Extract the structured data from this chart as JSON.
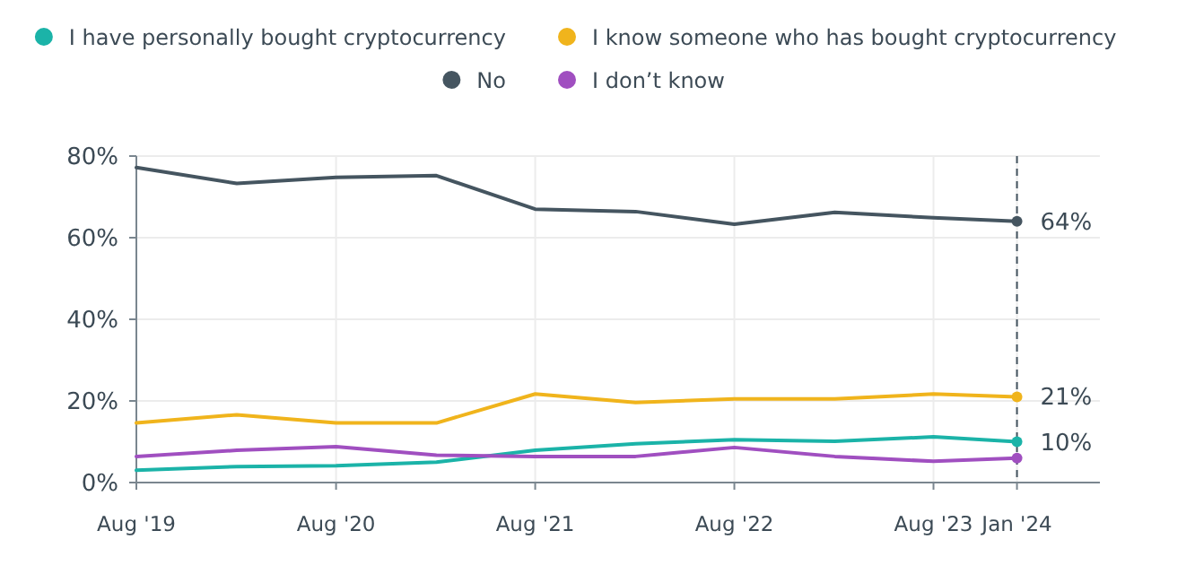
{
  "chart_data": {
    "type": "line",
    "x": [
      "2019-08",
      "2020-02",
      "2020-08",
      "2021-02",
      "2021-08",
      "2022-02",
      "2022-08",
      "2023-02",
      "2023-08",
      "2024-01"
    ],
    "series": [
      {
        "name": "I have personally bought cryptocurrency",
        "color": "#1bb3a8",
        "values": [
          3.0,
          3.9,
          4.1,
          5.0,
          7.9,
          9.5,
          10.5,
          10.1,
          11.2,
          10
        ],
        "value_labels": [
          null,
          null,
          null,
          null,
          null,
          null,
          null,
          null,
          null,
          "10%"
        ]
      },
      {
        "name": "I know someone who has bought cryptocurrency",
        "color": "#f0b41c",
        "values": [
          14.6,
          16.6,
          14.6,
          14.6,
          21.7,
          19.6,
          20.5,
          20.5,
          21.7,
          21
        ],
        "value_labels": [
          null,
          null,
          null,
          null,
          null,
          null,
          null,
          null,
          null,
          "21%"
        ]
      },
      {
        "name": "No",
        "color": "#455560",
        "values": [
          77.2,
          73.3,
          74.8,
          75.2,
          67,
          66.4,
          63.3,
          66.2,
          64.9,
          64
        ],
        "value_labels": [
          null,
          null,
          null,
          null,
          null,
          null,
          null,
          null,
          null,
          "64%"
        ]
      },
      {
        "name": "I don’t know",
        "color": "#a04fc0",
        "values": [
          6.4,
          7.9,
          8.8,
          6.7,
          6.4,
          6.4,
          8.6,
          6.4,
          5.2,
          6
        ]
      }
    ],
    "xlim": [
      "2019-08",
      "2024-06"
    ],
    "xticks": [
      {
        "value": "2019-08",
        "label": "Aug '19"
      },
      {
        "value": "2020-08",
        "label": "Aug '20"
      },
      {
        "value": "2021-08",
        "label": "Aug '21"
      },
      {
        "value": "2022-08",
        "label": "Aug '22"
      },
      {
        "value": "2023-08",
        "label": "Aug '23"
      },
      {
        "value": "2024-01",
        "label": "Jan '24"
      }
    ],
    "ylim": [
      0,
      80
    ],
    "yticks": [
      {
        "value": 0,
        "label": "0%"
      },
      {
        "value": 20,
        "label": "20%"
      },
      {
        "value": 40,
        "label": "40%"
      },
      {
        "value": 60,
        "label": "60%"
      },
      {
        "value": 80,
        "label": "80%"
      }
    ],
    "ref_lines": [
      {
        "axis": "x",
        "value": "2024-01",
        "color": "#455560",
        "line_style": "dashed"
      }
    ],
    "grid": true,
    "legend": "top",
    "line_style": "solid"
  }
}
